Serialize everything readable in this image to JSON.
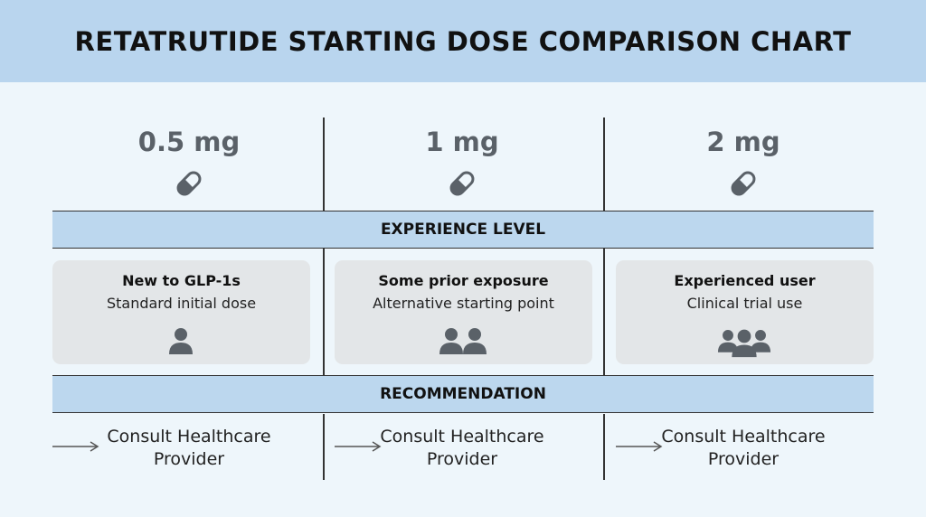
{
  "header": {
    "title": "RETATRUTIDE STARTING DOSE COMPARISON CHART"
  },
  "sections": {
    "experience": "EXPERIENCE LEVEL",
    "recommendation": "RECOMMENDATION"
  },
  "columns": [
    {
      "dose": "0.5 mg",
      "experience_title": "New to GLP-1s",
      "experience_desc": "Standard initial dose",
      "recommendation": "Consult Healthcare Provider"
    },
    {
      "dose": "1 mg",
      "experience_title": "Some prior exposure",
      "experience_desc": "Alternative starting point",
      "recommendation": "Consult Healthcare Provider"
    },
    {
      "dose": "2 mg",
      "experience_title": "Experienced user",
      "experience_desc": "Clinical trial use",
      "recommendation": "Consult Healthcare Provider"
    }
  ]
}
